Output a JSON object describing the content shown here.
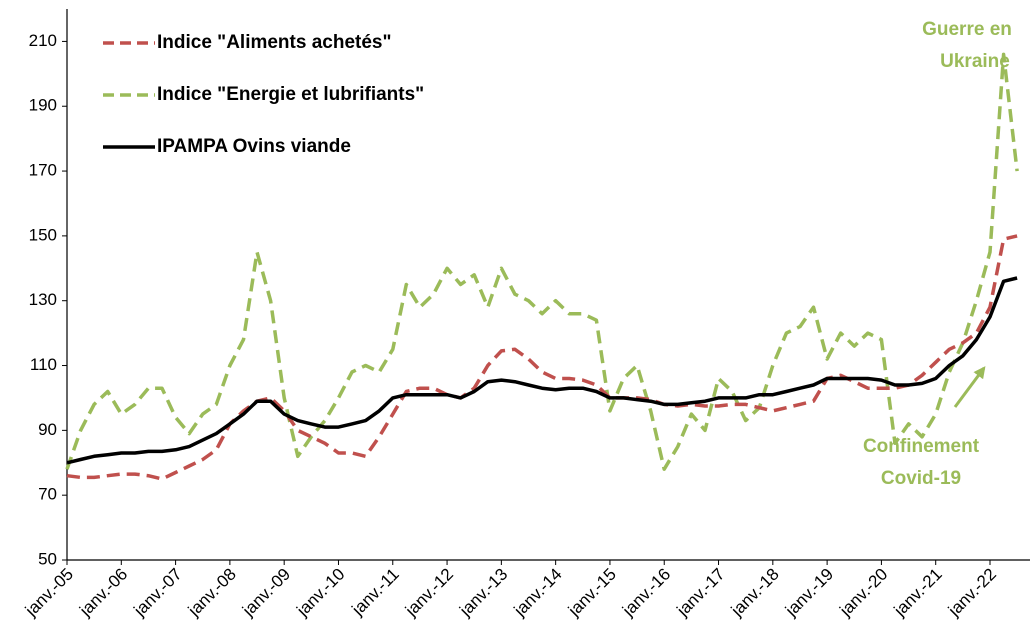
{
  "chart_data": {
    "type": "line",
    "categories": [
      "janv.-05",
      null,
      null,
      null,
      "janv.-06",
      null,
      null,
      null,
      "janv.-07",
      null,
      null,
      null,
      "janv.-08",
      null,
      null,
      null,
      "janv.-09",
      null,
      null,
      null,
      "janv.-10",
      null,
      null,
      null,
      "janv.-11",
      null,
      null,
      null,
      "janv.-12",
      null,
      null,
      null,
      "janv.-13",
      null,
      null,
      null,
      "janv.-14",
      null,
      null,
      null,
      "janv.-15",
      null,
      null,
      null,
      "janv.-16",
      null,
      null,
      null,
      "janv.-17",
      null,
      null,
      null,
      "janv.-18",
      null,
      null,
      null,
      "janv.-19",
      null,
      null,
      null,
      "janv.-20",
      null,
      null,
      null,
      "janv.-21",
      null,
      null,
      null,
      "janv.-22",
      null,
      null
    ],
    "series": [
      {
        "name": "Indice \"Aliments achetés\"",
        "color": "#c0504d",
        "dashed": true,
        "values": [
          76,
          75.5,
          75.5,
          76,
          76.5,
          76.5,
          76,
          75,
          77,
          79,
          81,
          84,
          92,
          96,
          99,
          100,
          96,
          90,
          88,
          86,
          83,
          83,
          82,
          88,
          95,
          102,
          103,
          103,
          101,
          100,
          103,
          110,
          114.5,
          115,
          112,
          108,
          106,
          106,
          105.5,
          104,
          100,
          100,
          100,
          99.5,
          98,
          97.5,
          98,
          97.5,
          97.5,
          98,
          98,
          97,
          96,
          97,
          98,
          99,
          106,
          107,
          105,
          103,
          103,
          103,
          104,
          107,
          111,
          115,
          117,
          120,
          128,
          149,
          150
        ]
      },
      {
        "name": "Indice \"Energie et lubrifiants\"",
        "color": "#9bbb59",
        "dashed": true,
        "values": [
          78,
          90,
          98,
          102,
          95,
          98,
          103,
          103,
          94,
          89,
          95,
          98,
          110,
          118,
          145,
          130,
          100,
          82,
          88,
          93,
          100,
          108,
          110,
          108,
          115,
          135,
          128,
          132,
          140,
          135,
          138,
          128,
          140,
          132,
          130,
          126,
          130,
          126,
          126,
          124,
          96,
          106,
          110,
          96,
          78,
          85,
          95,
          90,
          106,
          102,
          93,
          97,
          110,
          120,
          122,
          128,
          112,
          120,
          116,
          120,
          118,
          86,
          92,
          88,
          95,
          108,
          117,
          130,
          145,
          206,
          170
        ]
      },
      {
        "name": "IPAMPA Ovins viande",
        "color": "#000000",
        "dashed": false,
        "values": [
          80,
          81,
          82,
          82.5,
          83,
          83,
          83.5,
          83.5,
          84,
          85,
          87,
          89,
          92,
          95,
          99,
          99,
          95,
          93,
          92,
          91,
          91,
          92,
          93,
          96,
          100,
          101,
          101,
          101,
          101,
          100,
          102,
          105,
          105.5,
          105,
          104,
          103,
          102.5,
          103,
          103,
          102,
          100,
          100,
          99.5,
          99,
          98,
          98,
          98.5,
          99,
          100,
          100,
          100,
          101,
          101,
          102,
          103,
          104,
          106,
          106,
          106,
          106,
          105.5,
          104,
          104,
          104.5,
          106,
          110,
          113,
          118,
          125,
          136,
          137
        ]
      }
    ],
    "ylim": [
      50,
      220
    ],
    "yticks": [
      50,
      70,
      90,
      110,
      130,
      150,
      170,
      190,
      210
    ],
    "legend": "upper left",
    "annotations": [
      {
        "lines": [
          "Guerre en",
          "Ukraine"
        ]
      },
      {
        "lines": [
          "Confinement",
          "Covid-19"
        ]
      }
    ]
  }
}
